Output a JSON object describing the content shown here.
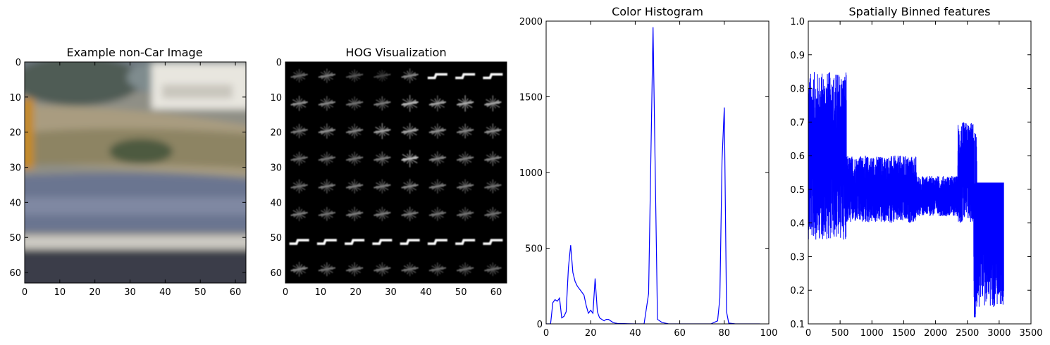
{
  "chart_data": [
    {
      "type": "image",
      "title": "Example non-Car Image",
      "xlim": [
        0,
        63
      ],
      "ylim": [
        63,
        0
      ],
      "xticks": [
        0,
        10,
        20,
        30,
        40,
        50,
        60
      ],
      "yticks": [
        0,
        10,
        20,
        30,
        40,
        50,
        60
      ]
    },
    {
      "type": "heatmap",
      "title": "HOG Visualization",
      "xlim": [
        0,
        63
      ],
      "ylim": [
        63,
        0
      ],
      "xticks": [
        0,
        10,
        20,
        30,
        40,
        50,
        60
      ],
      "yticks": [
        0,
        10,
        20,
        30,
        40,
        50,
        60
      ],
      "cell_strength": [
        [
          0.25,
          0.35,
          0.15,
          0.05,
          0.4,
          0.85,
          0.8,
          0.9
        ],
        [
          0.45,
          0.4,
          0.3,
          0.35,
          0.65,
          0.55,
          0.6,
          0.55
        ],
        [
          0.35,
          0.45,
          0.4,
          0.55,
          0.55,
          0.45,
          0.4,
          0.45
        ],
        [
          0.3,
          0.3,
          0.3,
          0.35,
          0.7,
          0.4,
          0.35,
          0.4
        ],
        [
          0.3,
          0.35,
          0.35,
          0.35,
          0.4,
          0.35,
          0.35,
          0.3
        ],
        [
          0.35,
          0.3,
          0.35,
          0.35,
          0.35,
          0.3,
          0.3,
          0.3
        ],
        [
          0.95,
          0.95,
          0.95,
          0.95,
          0.9,
          0.9,
          0.85,
          0.85
        ],
        [
          0.4,
          0.3,
          0.3,
          0.3,
          0.3,
          0.25,
          0.25,
          0.25
        ]
      ]
    },
    {
      "type": "line",
      "title": "Color Histogram",
      "xlim": [
        0,
        100
      ],
      "ylim": [
        0,
        2000
      ],
      "xticks": [
        0,
        20,
        40,
        60,
        80,
        100
      ],
      "yticks": [
        0,
        500,
        1000,
        1500,
        2000
      ],
      "line_color": "#0000ff",
      "x": [
        0,
        2,
        3,
        4,
        5,
        6,
        7,
        8,
        9,
        10,
        11,
        12,
        13,
        14,
        15,
        16,
        17,
        18,
        19,
        20,
        21,
        22,
        23,
        24,
        25,
        26,
        27,
        28,
        29,
        30,
        31,
        32,
        35,
        40,
        44,
        46,
        48,
        50,
        52,
        55,
        60,
        65,
        70,
        74,
        77,
        78,
        79,
        80,
        81,
        82,
        85,
        90,
        96
      ],
      "y": [
        0,
        0,
        140,
        160,
        150,
        170,
        40,
        50,
        80,
        370,
        520,
        340,
        280,
        250,
        230,
        210,
        190,
        120,
        70,
        90,
        70,
        300,
        80,
        40,
        30,
        20,
        30,
        30,
        20,
        10,
        5,
        3,
        2,
        0,
        0,
        200,
        1960,
        30,
        10,
        0,
        0,
        0,
        0,
        0,
        20,
        170,
        1080,
        1430,
        80,
        5,
        0,
        0,
        0
      ]
    },
    {
      "type": "line",
      "title": "Spatially Binned features",
      "xlim": [
        0,
        3500
      ],
      "ylim": [
        0.1,
        1.0
      ],
      "xticks": [
        0,
        500,
        1000,
        1500,
        2000,
        2500,
        3000,
        3500
      ],
      "yticks": [
        0.1,
        0.2,
        0.3,
        0.4,
        0.5,
        0.6,
        0.7,
        0.8,
        0.9,
        1.0
      ],
      "line_color": "#0000ff",
      "n_points": 3072,
      "note_baseline": 0.5
    }
  ]
}
